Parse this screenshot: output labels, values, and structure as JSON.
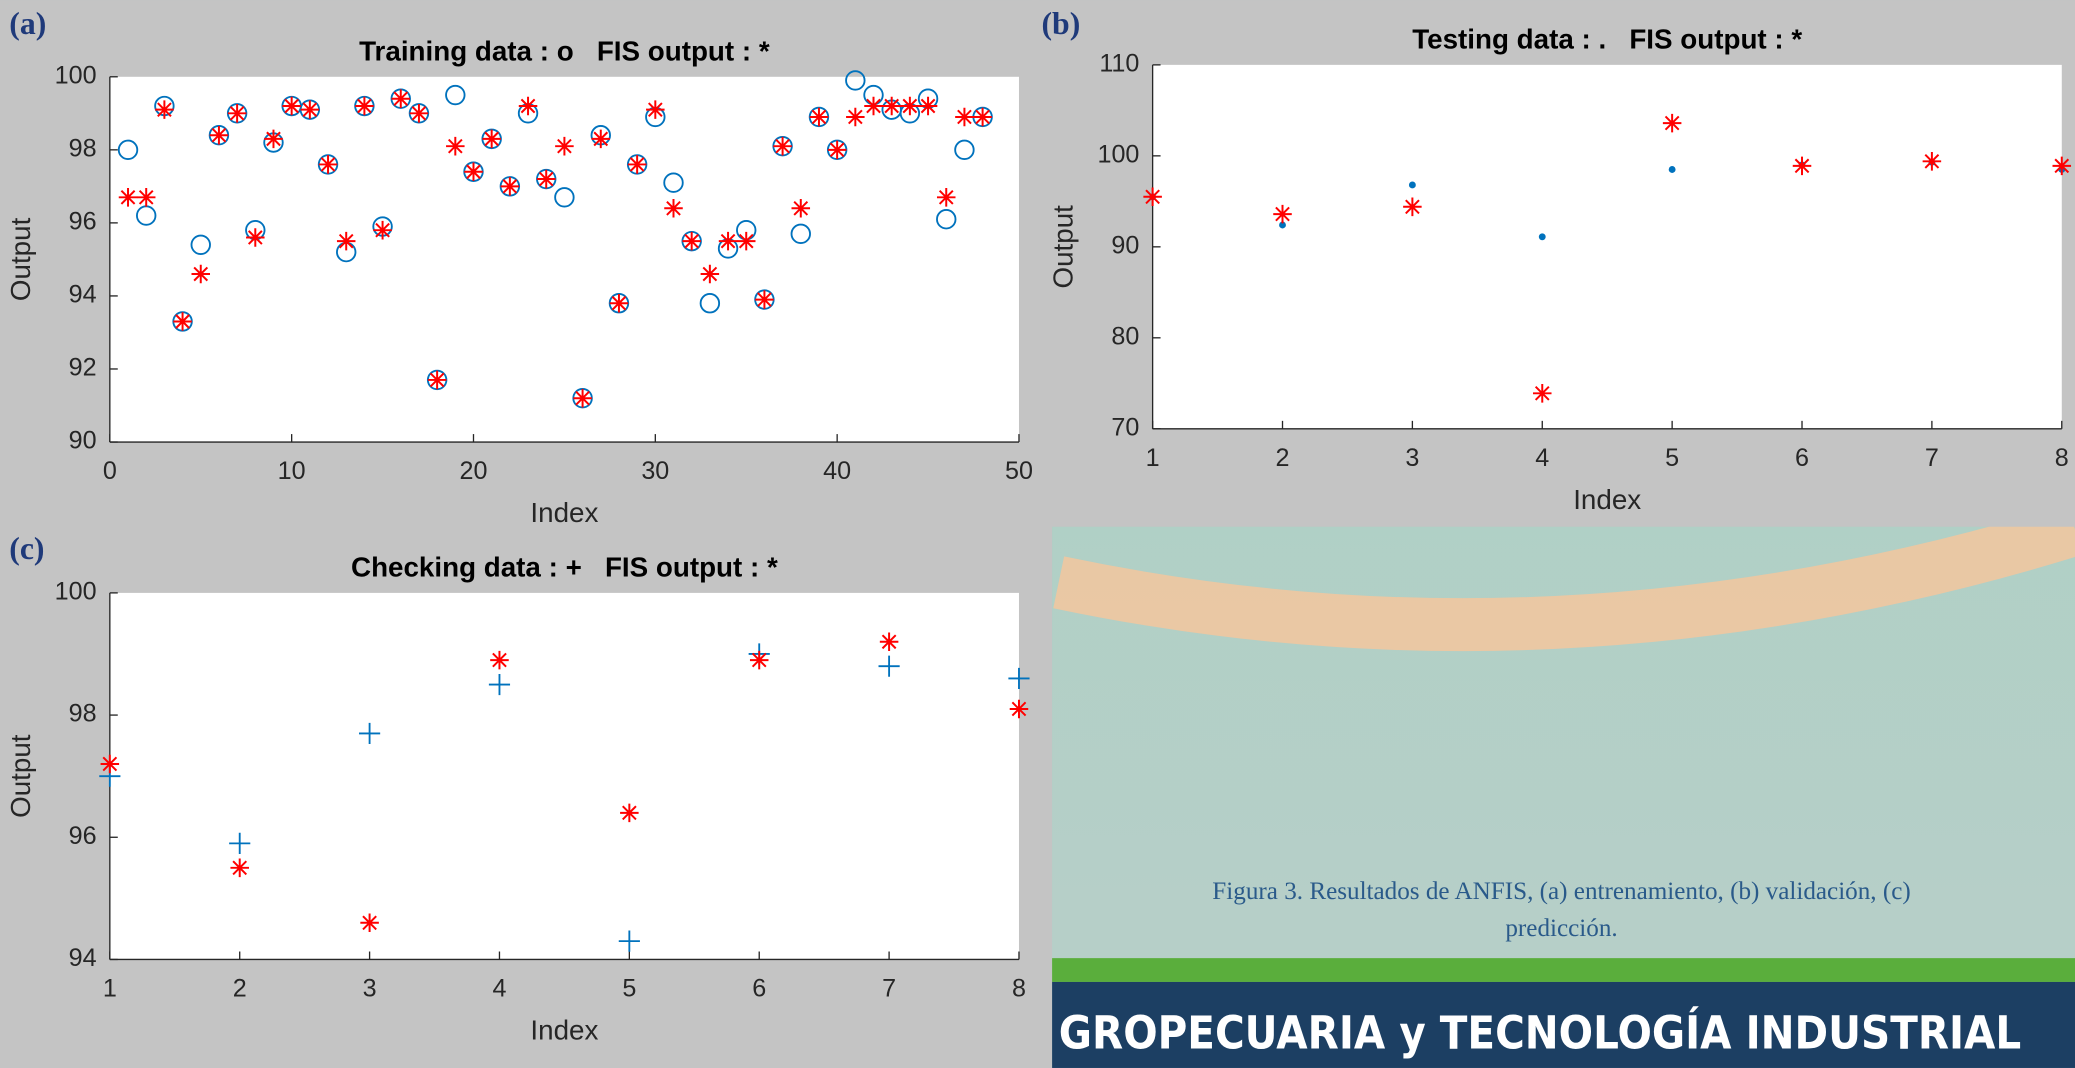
{
  "chart_data": [
    {
      "type": "scatter",
      "panel": "(a)",
      "title": "Training data : o   FIS output : *",
      "xlabel": "Index",
      "ylabel": "Output",
      "x": [
        1,
        2,
        3,
        4,
        5,
        6,
        7,
        8,
        9,
        10,
        11,
        12,
        13,
        14,
        15,
        16,
        17,
        18,
        19,
        20,
        21,
        22,
        23,
        24,
        25,
        26,
        27,
        28,
        29,
        30,
        31,
        32,
        33,
        34,
        35,
        36,
        37,
        38,
        39,
        40,
        41,
        42,
        43,
        44,
        45,
        46,
        47,
        48
      ],
      "xlim": [
        0,
        50
      ],
      "xticks": [
        0,
        10,
        20,
        30,
        40,
        50
      ],
      "ylim": [
        90,
        100
      ],
      "yticks": [
        90,
        92,
        94,
        96,
        98,
        100
      ],
      "series": [
        {
          "marker": "o",
          "color": "#0072bd",
          "values": [
            98.0,
            96.2,
            99.2,
            93.3,
            95.4,
            98.4,
            99.0,
            95.8,
            98.2,
            99.2,
            99.1,
            97.6,
            95.2,
            99.2,
            95.9,
            99.4,
            99.0,
            91.7,
            99.5,
            97.4,
            98.3,
            97.0,
            99.0,
            97.2,
            96.7,
            91.2,
            98.4,
            93.8,
            97.6,
            98.9,
            97.1,
            95.5,
            93.8,
            95.3,
            95.8,
            93.9,
            98.1,
            95.7,
            98.9,
            98.0,
            99.9,
            99.5,
            99.1,
            99.0,
            99.4,
            96.1,
            98.0,
            98.9
          ]
        },
        {
          "marker": "*",
          "color": "#ff0000",
          "values": [
            96.7,
            96.7,
            99.1,
            93.3,
            94.6,
            98.4,
            99.0,
            95.6,
            98.3,
            99.2,
            99.1,
            97.6,
            95.5,
            99.2,
            95.8,
            99.4,
            99.0,
            91.7,
            98.1,
            97.4,
            98.3,
            97.0,
            99.2,
            97.2,
            98.1,
            91.2,
            98.3,
            93.8,
            97.6,
            99.1,
            96.4,
            95.5,
            94.6,
            95.5,
            95.5,
            93.9,
            98.1,
            96.4,
            98.9,
            98.0,
            98.9,
            99.2,
            99.2,
            99.2,
            99.2,
            96.7,
            98.9,
            98.9
          ]
        }
      ]
    },
    {
      "type": "scatter",
      "panel": "(b)",
      "title": "Testing data : .   FIS output : *",
      "xlabel": "Index",
      "ylabel": "Output",
      "x": [
        1,
        2,
        3,
        4,
        5,
        6,
        7,
        8
      ],
      "xlim": [
        1,
        8
      ],
      "xticks": [
        1,
        2,
        3,
        4,
        5,
        6,
        7,
        8
      ],
      "ylim": [
        70,
        110
      ],
      "yticks": [
        70,
        80,
        90,
        100,
        110
      ],
      "series": [
        {
          "marker": ".",
          "color": "#0072bd",
          "values": [
            95.5,
            92.4,
            96.8,
            91.1,
            98.5,
            99.0,
            99.3,
            98.5
          ]
        },
        {
          "marker": "*",
          "color": "#ff0000",
          "values": [
            95.5,
            93.6,
            94.4,
            73.9,
            103.6,
            98.9,
            99.4,
            98.9
          ]
        }
      ]
    },
    {
      "type": "scatter",
      "panel": "(c)",
      "title": "Checking data : +   FIS output : *",
      "xlabel": "Index",
      "ylabel": "Output",
      "x": [
        1,
        2,
        3,
        4,
        5,
        6,
        7,
        8
      ],
      "xlim": [
        1,
        8
      ],
      "xticks": [
        1,
        2,
        3,
        4,
        5,
        6,
        7,
        8
      ],
      "ylim": [
        94,
        100
      ],
      "yticks": [
        94,
        96,
        98,
        100
      ],
      "series": [
        {
          "marker": "+",
          "color": "#0072bd",
          "values": [
            97.0,
            95.9,
            97.7,
            98.5,
            94.3,
            99.0,
            98.8,
            98.6
          ]
        },
        {
          "marker": "*",
          "color": "#ff0000",
          "values": [
            97.2,
            95.5,
            94.6,
            98.9,
            96.4,
            98.9,
            99.2,
            98.1
          ]
        }
      ]
    }
  ],
  "caption": [
    "Figura 3. Resultados de ANFIS, (a) entrenamiento, (b) validación, (c)",
    "predicción."
  ],
  "banner": "GROPECUARIA y TECNOLOGÍA INDUSTRIAL"
}
